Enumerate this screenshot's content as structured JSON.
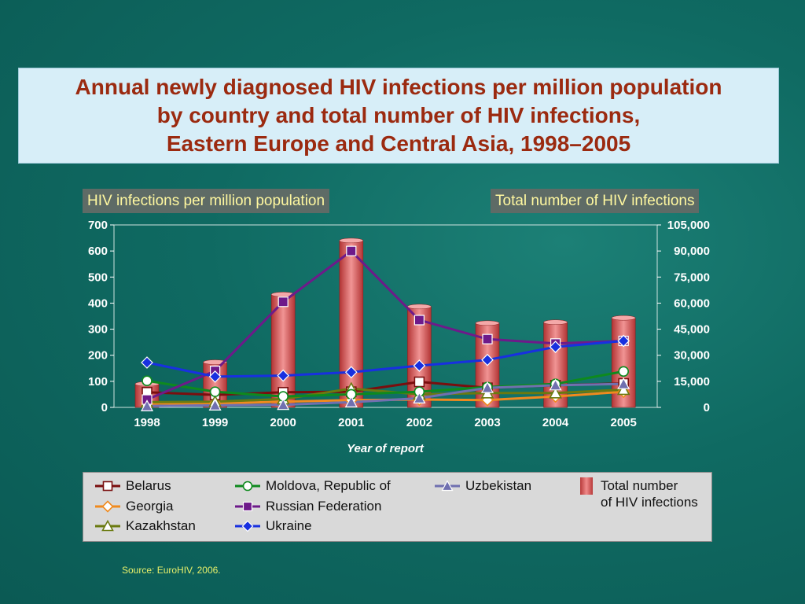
{
  "title_lines": [
    "Annual newly diagnosed HIV infections per million population",
    "by country and total number of HIV infections,",
    "Eastern Europe and Central Asia, 1998–2005"
  ],
  "left_axis_tag": "HIV infections per million population",
  "right_axis_tag": "Total number of HIV infections",
  "source": "Source:  EuroHIV, 2006.",
  "legend": {
    "total_line1": "Total number",
    "total_line2": "of HIV infections"
  },
  "colors": {
    "background": "#0f6a62",
    "title": "#9b2a10",
    "bar": "#e07070"
  },
  "chart_data": {
    "type": "bar+line",
    "categories": [
      "1998",
      "1999",
      "2000",
      "2001",
      "2002",
      "2003",
      "2004",
      "2005"
    ],
    "xlabel": "Year of report",
    "ylabel": "HIV infections per million population",
    "ylabel_right": "Total number of HIV infections",
    "ylim": [
      0,
      700
    ],
    "yticks": [
      0,
      100,
      200,
      300,
      400,
      500,
      600,
      700
    ],
    "ylim_right": [
      0,
      105000
    ],
    "yticks_right": [
      "0",
      "15,000",
      "30,000",
      "45,000",
      "60,000",
      "75,000",
      "90,000",
      "105,000"
    ],
    "bars": {
      "name": "Total number of HIV infections",
      "axis": "right",
      "values": [
        13500,
        26000,
        65000,
        96000,
        58000,
        48500,
        49000,
        51500
      ]
    },
    "series": [
      {
        "name": "Belarus",
        "color": "#7a0e0e",
        "marker": "square-open",
        "values": [
          58,
          48,
          58,
          60,
          98,
          75,
          85,
          92
        ]
      },
      {
        "name": "Georgia",
        "color": "#f08a1e",
        "marker": "diamond-open",
        "values": [
          15,
          15,
          22,
          28,
          30,
          28,
          42,
          60
        ]
      },
      {
        "name": "Kazakhstan",
        "color": "#6a7a10",
        "marker": "triangle-open",
        "values": [
          20,
          22,
          32,
          72,
          50,
          55,
          55,
          68
        ]
      },
      {
        "name": "Moldova, Republic of",
        "color": "#0e8a1e",
        "marker": "circle-open",
        "values": [
          102,
          60,
          42,
          50,
          60,
          78,
          90,
          138
        ]
      },
      {
        "name": "Russian Federation",
        "color": "#6e1a8a",
        "marker": "square-filled",
        "values": [
          30,
          140,
          405,
          600,
          335,
          262,
          245,
          255
        ]
      },
      {
        "name": "Ukraine",
        "color": "#1830e0",
        "marker": "diamond-filled",
        "values": [
          172,
          118,
          122,
          135,
          160,
          182,
          232,
          255
        ]
      },
      {
        "name": "Uzbekistan",
        "color": "#7070b0",
        "marker": "triangle-filled",
        "values": [
          5,
          8,
          10,
          20,
          35,
          75,
          85,
          90
        ]
      }
    ],
    "grid": false,
    "legend_position": "bottom"
  }
}
